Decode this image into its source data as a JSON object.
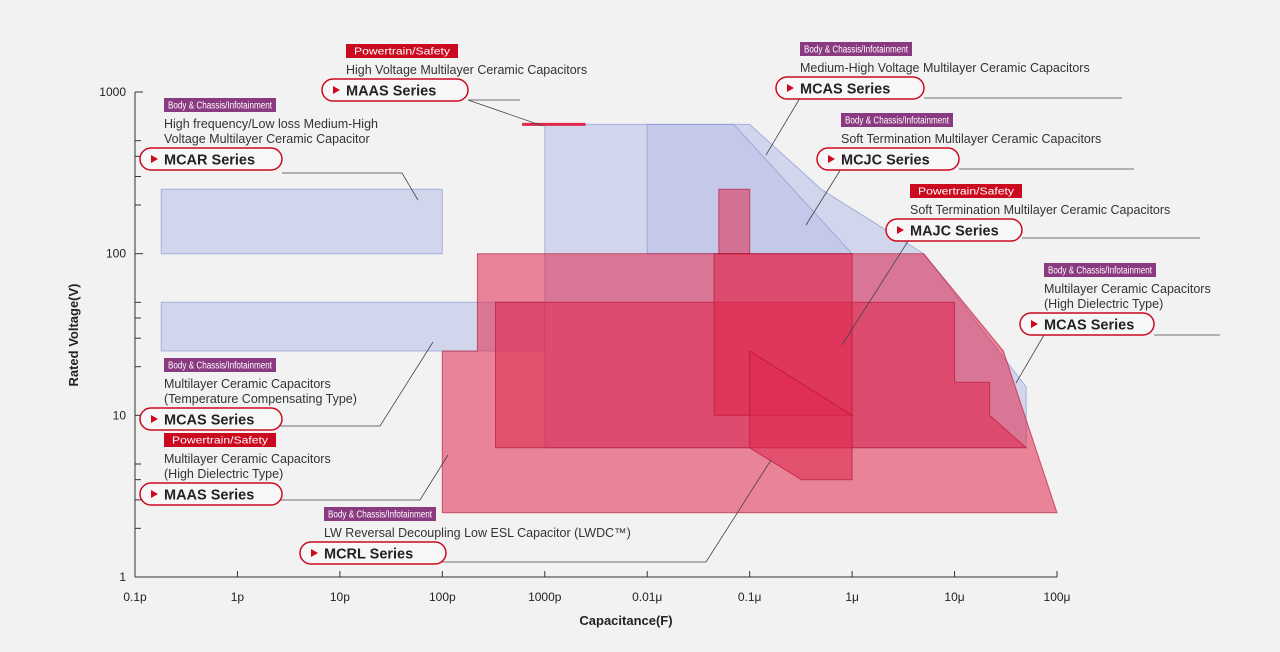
{
  "colors": {
    "powertrain": "#cc0a1f",
    "body": "#8a3a80",
    "blue_fill": "#b8c0e8",
    "blue_stroke": "#7f8fcf",
    "red_fill": "#e0284e",
    "red_stroke": "#b00e30",
    "callout_line": "#444444",
    "pill_stroke": "#cc0a1f"
  },
  "chart_data": {
    "type": "area",
    "xlabel": "Capacitance(F)",
    "ylabel": "Rated Voltage(V)",
    "x_scale": "log",
    "y_scale": "log",
    "xlim": [
      1e-13,
      0.0001
    ],
    "ylim": [
      1,
      1000
    ],
    "x_ticks": [
      {
        "value": 1e-13,
        "label": "0.1p"
      },
      {
        "value": 1e-12,
        "label": "1p"
      },
      {
        "value": 1e-11,
        "label": "10p"
      },
      {
        "value": 1e-10,
        "label": "100p"
      },
      {
        "value": 1e-09,
        "label": "1000p"
      },
      {
        "value": 1e-08,
        "label": "0.01μ"
      },
      {
        "value": 1e-07,
        "label": "0.1μ"
      },
      {
        "value": 1e-06,
        "label": "1μ"
      },
      {
        "value": 1e-05,
        "label": "10μ"
      },
      {
        "value": 0.0001,
        "label": "100μ"
      }
    ],
    "y_ticks": [
      {
        "value": 1,
        "label": "1"
      },
      {
        "value": 10,
        "label": "10"
      },
      {
        "value": 100,
        "label": "100"
      },
      {
        "value": 1000,
        "label": "1000"
      }
    ],
    "y_minor_ticks": [
      2,
      3,
      4,
      5,
      20,
      30,
      40,
      50,
      200,
      300,
      400,
      500
    ],
    "regions": [
      {
        "series": "MCAR Series",
        "color": "blue",
        "points": [
          [
            1.8e-13,
            250
          ],
          [
            1e-10,
            250
          ],
          [
            1e-10,
            100
          ],
          [
            1.8e-13,
            100
          ]
        ]
      },
      {
        "series": "MCAS Series (Temperature Compensating Type)",
        "color": "blue",
        "points": [
          [
            1.8e-13,
            50
          ],
          [
            1e-09,
            50
          ],
          [
            1e-09,
            25
          ],
          [
            1.8e-13,
            25
          ]
        ]
      },
      {
        "series": "MCAS Series (Medium-High Voltage)",
        "color": "blue",
        "points": [
          [
            1e-09,
            630
          ],
          [
            1e-07,
            630
          ],
          [
            5e-07,
            250
          ],
          [
            5e-06,
            100
          ],
          [
            5e-05,
            15
          ],
          [
            5e-05,
            6.3
          ],
          [
            1e-09,
            6.3
          ]
        ]
      },
      {
        "series": "MCJC Series",
        "color": "blue",
        "points": [
          [
            1e-08,
            630
          ],
          [
            7e-08,
            630
          ],
          [
            1e-06,
            100
          ],
          [
            1e-08,
            100
          ]
        ]
      },
      {
        "series": "MCAS Series (High Dielectric Type)",
        "color": "red",
        "points": [
          [
            1e-10,
            25
          ],
          [
            2.2e-10,
            25
          ],
          [
            2.2e-10,
            100
          ],
          [
            5e-06,
            100
          ],
          [
            3e-05,
            25
          ],
          [
            0.0001,
            2.5
          ],
          [
            1e-10,
            2.5
          ]
        ]
      },
      {
        "series": "MAAS Series (High Dielectric Type)",
        "color": "red",
        "points": [
          [
            3.3e-10,
            50
          ],
          [
            1e-05,
            50
          ],
          [
            1e-05,
            16
          ],
          [
            2.2e-05,
            16
          ],
          [
            2.2e-05,
            10
          ],
          [
            5e-05,
            6.3
          ],
          [
            3.3e-10,
            6.3
          ]
        ]
      },
      {
        "series": "MAAS Series (High Voltage)",
        "color": "red",
        "points": [
          [
            6e-10,
            630
          ],
          [
            2.5e-09,
            630
          ]
        ]
      },
      {
        "series": "MAJC Series",
        "color": "red",
        "points": [
          [
            4.5e-08,
            100
          ],
          [
            1e-06,
            100
          ],
          [
            1e-06,
            10
          ],
          [
            4.5e-08,
            10
          ]
        ]
      },
      {
        "series": "MAJC Series",
        "color": "red",
        "points": [
          [
            5e-08,
            250
          ],
          [
            1e-07,
            250
          ],
          [
            1e-07,
            100
          ],
          [
            5e-08,
            100
          ]
        ]
      },
      {
        "series": "MCRL Series",
        "color": "red",
        "points": [
          [
            1e-07,
            25
          ],
          [
            1e-06,
            10
          ],
          [
            1e-06,
            4
          ],
          [
            3.2e-07,
            4
          ],
          [
            1e-07,
            6.3
          ]
        ]
      }
    ]
  },
  "callouts": [
    {
      "badge": "Powertrain/Safety",
      "badge_type": "powertrain",
      "desc": [
        "High Voltage Multilayer Ceramic Capacitors"
      ],
      "name": "MAAS Series"
    },
    {
      "badge": "Body & Chassis/Infotainment",
      "badge_type": "body",
      "desc": [
        "High frequency/Low loss Medium-High",
        "Voltage Multilayer Ceramic Capacitor"
      ],
      "name": "MCAR Series"
    },
    {
      "badge": "Body & Chassis/Infotainment",
      "badge_type": "body",
      "desc": [
        "Medium-High Voltage Multilayer Ceramic Capacitors"
      ],
      "name": "MCAS Series"
    },
    {
      "badge": "Body & Chassis/Infotainment",
      "badge_type": "body",
      "desc": [
        "Soft Termination  Multilayer Ceramic Capacitors"
      ],
      "name": "MCJC Series"
    },
    {
      "badge": "Powertrain/Safety",
      "badge_type": "powertrain",
      "desc": [
        "Soft Termination Multilayer Ceramic Capacitors"
      ],
      "name": "MAJC Series"
    },
    {
      "badge": "Body & Chassis/Infotainment",
      "badge_type": "body",
      "desc": [
        "Multilayer Ceramic Capacitors",
        "(High Dielectric Type)"
      ],
      "name": "MCAS Series"
    },
    {
      "badge": "Body & Chassis/Infotainment",
      "badge_type": "body",
      "desc": [
        "Multilayer Ceramic Capacitors",
        "(Temperature Compensating Type)"
      ],
      "name": "MCAS Series"
    },
    {
      "badge": "Powertrain/Safety",
      "badge_type": "powertrain",
      "desc": [
        "Multilayer Ceramic Capacitors",
        "(High Dielectric Type)"
      ],
      "name": "MAAS Series"
    },
    {
      "badge": "Body & Chassis/Infotainment",
      "badge_type": "body",
      "desc": [
        "LW Reversal Decoupling Low  ESL Capacitor (LWDC™)"
      ],
      "name": "MCRL Series"
    }
  ]
}
